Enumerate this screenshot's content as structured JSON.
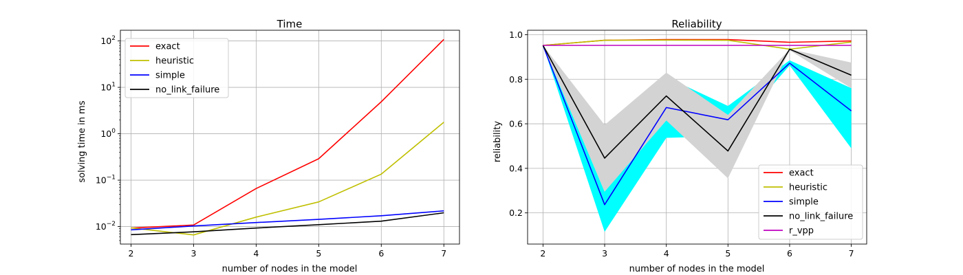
{
  "chart_data": [
    {
      "type": "line",
      "title": "Time",
      "xlabel": "number of nodes in the model",
      "ylabel": "solving time in ms",
      "yscale": "log",
      "grid": true,
      "legend_position": "top-left",
      "x": [
        2,
        3,
        4,
        5,
        6,
        7
      ],
      "xlim": [
        1.83,
        7.25
      ],
      "ylim": [
        0.0042,
        170
      ],
      "xticks": [
        2,
        3,
        4,
        5,
        6,
        7
      ],
      "yticks": [
        {
          "value": 0.01,
          "base": "10",
          "exp": "−2"
        },
        {
          "value": 0.1,
          "base": "10",
          "exp": "−1"
        },
        {
          "value": 1,
          "base": "10",
          "exp": "0"
        },
        {
          "value": 10,
          "base": "10",
          "exp": "1"
        },
        {
          "value": 100,
          "base": "10",
          "exp": "2"
        }
      ],
      "series": [
        {
          "name": "exact",
          "color": "#ff0000",
          "values": [
            0.0093,
            0.0108,
            0.066,
            0.29,
            4.9,
            108
          ]
        },
        {
          "name": "heuristic",
          "color": "#bfbf00",
          "values": [
            0.0094,
            0.0066,
            0.016,
            0.034,
            0.135,
            1.78
          ]
        },
        {
          "name": "simple",
          "color": "#0000ff",
          "values": [
            0.0085,
            0.0103,
            0.0122,
            0.0143,
            0.0171,
            0.0218
          ]
        },
        {
          "name": "no_link_failure",
          "color": "#000000",
          "values": [
            0.0067,
            0.0077,
            0.0093,
            0.011,
            0.0131,
            0.0198
          ]
        }
      ]
    },
    {
      "type": "line",
      "title": "Reliability",
      "xlabel": "number of nodes in the model",
      "ylabel": "reliability",
      "grid": true,
      "legend_position": "bottom-right",
      "x": [
        2,
        3,
        4,
        5,
        6,
        7
      ],
      "xlim": [
        1.75,
        7.25
      ],
      "ylim": [
        0.06,
        1.02
      ],
      "xticks": [
        2,
        3,
        4,
        5,
        6,
        7
      ],
      "yticks": [
        0.2,
        0.4,
        0.6,
        0.8,
        1.0
      ],
      "bands": [
        {
          "color": "#00ffff",
          "upper": [
            0.952,
            0.295,
            0.81,
            0.68,
            0.885,
            0.76
          ],
          "lower": [
            0.952,
            0.115,
            0.537,
            0.545,
            0.862,
            0.49
          ]
        },
        {
          "color": "#d3d3d3",
          "upper": [
            0.952,
            0.595,
            0.83,
            0.64,
            0.935,
            0.875
          ],
          "lower": [
            0.952,
            0.295,
            0.615,
            0.355,
            0.93,
            0.76
          ]
        }
      ],
      "series": [
        {
          "name": "exact",
          "color": "#ff0000",
          "values": [
            0.952,
            0.975,
            0.978,
            0.978,
            0.966,
            0.972
          ]
        },
        {
          "name": "heuristic",
          "color": "#bfbf00",
          "values": [
            0.952,
            0.975,
            0.976,
            0.975,
            0.935,
            0.967
          ]
        },
        {
          "name": "simple",
          "color": "#0000ff",
          "values": [
            0.952,
            0.237,
            0.673,
            0.618,
            0.872,
            0.658
          ]
        },
        {
          "name": "no_link_failure",
          "color": "#000000",
          "values": [
            0.952,
            0.446,
            0.725,
            0.478,
            0.935,
            0.818
          ]
        },
        {
          "name": "r_vpp",
          "color": "#bf00bf",
          "values": [
            0.952,
            0.952,
            0.952,
            0.952,
            0.952,
            0.952
          ]
        }
      ]
    }
  ]
}
